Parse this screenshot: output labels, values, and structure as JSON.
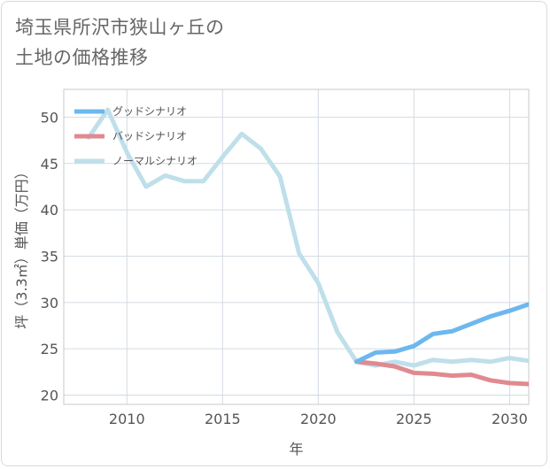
{
  "chart_title": "埼玉県所沢市狭山ヶ丘の\n土地の価格推移",
  "chart_data": {
    "type": "line",
    "title": "埼玉県所沢市狭山ヶ丘の土地の価格推移",
    "xlabel": "年",
    "ylabel": "坪（3.3㎡）単価（万円）",
    "xlim": [
      2006.7,
      2031.0
    ],
    "ylim": [
      19.0,
      53.0
    ],
    "x_ticks": [
      2010,
      2015,
      2020,
      2025,
      2030
    ],
    "y_ticks": [
      20,
      25,
      30,
      35,
      40,
      45,
      50
    ],
    "grid": true,
    "legend_position": "top-left",
    "series": [
      {
        "name": "グッドシナリオ",
        "color": "#6cb8ee",
        "x": [
          2022,
          2023,
          2024,
          2025,
          2026,
          2027,
          2028,
          2029,
          2030,
          2031
        ],
        "y": [
          23.6,
          24.6,
          24.7,
          25.3,
          26.6,
          26.9,
          27.7,
          28.5,
          29.1,
          29.8
        ]
      },
      {
        "name": "バッドシナリオ",
        "color": "#e08a90",
        "x": [
          2022,
          2023,
          2024,
          2025,
          2026,
          2027,
          2028,
          2029,
          2030,
          2031
        ],
        "y": [
          23.6,
          23.4,
          23.1,
          22.4,
          22.3,
          22.1,
          22.2,
          21.6,
          21.3,
          21.2
        ]
      },
      {
        "name": "ノーマルシナリオ",
        "color": "#bfdfea",
        "x": [
          2008,
          2009,
          2010,
          2011,
          2012,
          2013,
          2014,
          2015,
          2016,
          2017,
          2018,
          2019,
          2020,
          2021,
          2022,
          2023,
          2024,
          2025,
          2026,
          2027,
          2028,
          2029,
          2030,
          2031
        ],
        "y": [
          47.8,
          50.8,
          46.2,
          42.5,
          43.7,
          43.1,
          43.1,
          45.7,
          48.2,
          46.6,
          43.6,
          35.3,
          32.1,
          26.8,
          23.6,
          23.2,
          23.6,
          23.2,
          23.8,
          23.6,
          23.8,
          23.6,
          24.0,
          23.7
        ]
      }
    ]
  }
}
